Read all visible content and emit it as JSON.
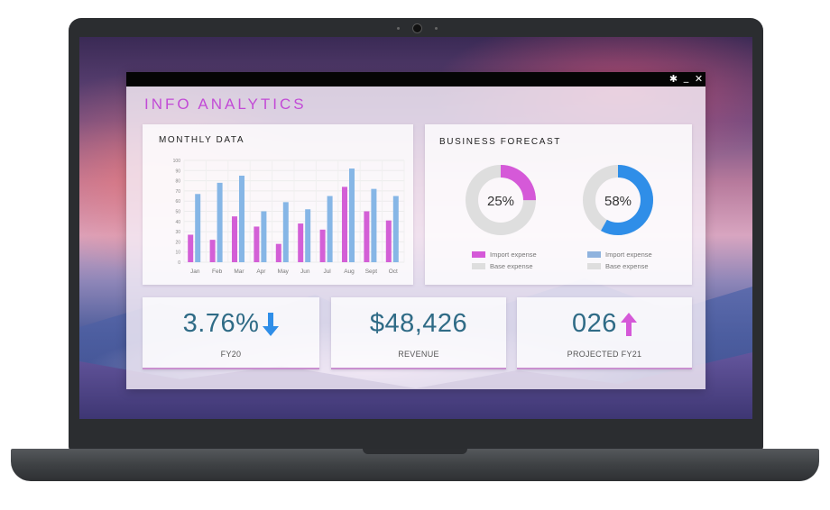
{
  "window": {
    "title": "INFO ANALYTICS",
    "controls": {
      "settings": "✱",
      "minimize": "_",
      "close": "✕"
    }
  },
  "monthly": {
    "title": "MONTHLY DATA"
  },
  "forecast": {
    "title": "BUSINESS FORECAST",
    "donuts": [
      {
        "percent_label": "25%",
        "percent": 25,
        "color": "#d559d8",
        "base_color": "#dedede",
        "legend": [
          "Import expense",
          "Base expense"
        ]
      },
      {
        "percent_label": "58%",
        "percent": 58,
        "color": "#2f8ee8",
        "base_color": "#dedede",
        "legend": [
          "Import expense",
          "Base expense"
        ],
        "legend_color": "#8fb3de"
      }
    ]
  },
  "kpis": [
    {
      "value": "3.76%",
      "label": "FY20",
      "arrow": "down-arrow-icon",
      "arrow_color": "#2f8ee8"
    },
    {
      "value": "$48,426",
      "label": "REVENUE"
    },
    {
      "value": "026",
      "label": "PROJECTED FY21",
      "arrow": "up-arrow-icon",
      "arrow_color": "#d559d8"
    }
  ],
  "chart_data": {
    "type": "bar",
    "categories": [
      "Jan",
      "Feb",
      "Mar",
      "Apr",
      "May",
      "Jun",
      "Jul",
      "Aug",
      "Sept",
      "Oct"
    ],
    "yticks": [
      "0",
      "10",
      "20",
      "30",
      "40",
      "50",
      "60",
      "70",
      "80",
      "90",
      "100"
    ],
    "ylim": [
      0,
      100
    ],
    "grid": true,
    "series": [
      {
        "color": "#d35fd6",
        "values": [
          27,
          22,
          45,
          35,
          18,
          38,
          32,
          74,
          50,
          41
        ]
      },
      {
        "color": "#86b6e6",
        "values": [
          67,
          78,
          85,
          50,
          59,
          52,
          65,
          92,
          72,
          65
        ]
      }
    ]
  }
}
